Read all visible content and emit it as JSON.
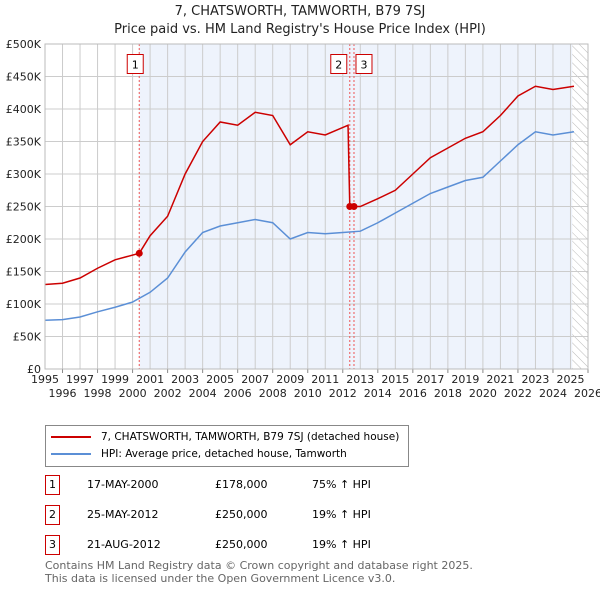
{
  "header": {
    "title": "7, CHATSWORTH, TAMWORTH, B79 7SJ",
    "subtitle": "Price paid vs. HM Land Registry's House Price Index (HPI)"
  },
  "chart_data": {
    "type": "line",
    "title": "7, CHATSWORTH, TAMWORTH, B79 7SJ",
    "subtitle": "Price paid vs. HM Land Registry's House Price Index (HPI)",
    "xlim": [
      1995,
      2026
    ],
    "ylim": [
      0,
      500000
    ],
    "xticks": [
      "1995",
      "1996",
      "1997",
      "1998",
      "1999",
      "2000",
      "2001",
      "2002",
      "2003",
      "2004",
      "2005",
      "2006",
      "2007",
      "2008",
      "2009",
      "2010",
      "2011",
      "2012",
      "2013",
      "2014",
      "2015",
      "2016",
      "2017",
      "2018",
      "2019",
      "2020",
      "2021",
      "2022",
      "2023",
      "2024",
      "2025",
      "2026"
    ],
    "yticks": [
      {
        "v": 0,
        "l": "£0"
      },
      {
        "v": 50000,
        "l": "£50K"
      },
      {
        "v": 100000,
        "l": "£100K"
      },
      {
        "v": 150000,
        "l": "£150K"
      },
      {
        "v": 200000,
        "l": "£200K"
      },
      {
        "v": 250000,
        "l": "£250K"
      },
      {
        "v": 300000,
        "l": "£300K"
      },
      {
        "v": 350000,
        "l": "£350K"
      },
      {
        "v": 400000,
        "l": "£400K"
      },
      {
        "v": 450000,
        "l": "£450K"
      },
      {
        "v": 500000,
        "l": "£500K"
      }
    ],
    "grid": true,
    "series": [
      {
        "name": "7, CHATSWORTH, TAMWORTH, B79 7SJ (detached house)",
        "color": "#cc0000",
        "x": [
          1995,
          1996,
          1997,
          1998,
          1999,
          2000.38,
          2001,
          2002,
          2003,
          2004,
          2005,
          2006,
          2007,
          2008,
          2009,
          2010,
          2011,
          2012.3,
          2012.4,
          2012.64,
          2013,
          2014,
          2015,
          2016,
          2017,
          2018,
          2019,
          2020,
          2021,
          2022,
          2023,
          2024,
          2025.2
        ],
        "y": [
          130000,
          132000,
          140000,
          155000,
          168000,
          178000,
          205000,
          235000,
          300000,
          350000,
          380000,
          375000,
          395000,
          390000,
          345000,
          365000,
          360000,
          375000,
          250000,
          250000,
          250000,
          262000,
          275000,
          300000,
          325000,
          340000,
          355000,
          365000,
          390000,
          420000,
          435000,
          430000,
          435000
        ]
      },
      {
        "name": "HPI: Average price, detached house, Tamworth",
        "color": "#5b8fd6",
        "x": [
          1995,
          1996,
          1997,
          1998,
          1999,
          2000,
          2001,
          2002,
          2003,
          2004,
          2005,
          2006,
          2007,
          2008,
          2009,
          2010,
          2011,
          2012,
          2013,
          2014,
          2015,
          2016,
          2017,
          2018,
          2019,
          2020,
          2021,
          2022,
          2023,
          2024,
          2025.2
        ],
        "y": [
          75000,
          76000,
          80000,
          88000,
          95000,
          103000,
          118000,
          140000,
          180000,
          210000,
          220000,
          225000,
          230000,
          225000,
          200000,
          210000,
          208000,
          210000,
          212000,
          225000,
          240000,
          255000,
          270000,
          280000,
          290000,
          295000,
          320000,
          345000,
          365000,
          360000,
          365000
        ]
      }
    ],
    "sales": [
      {
        "label": "1",
        "x": 2000.38,
        "y": 178000
      },
      {
        "label": "2",
        "x": 2012.4,
        "y": 250000
      },
      {
        "label": "3",
        "x": 2012.64,
        "y": 250000
      }
    ],
    "legend_position": "below"
  },
  "legend": [
    "7, CHATSWORTH, TAMWORTH, B79 7SJ (detached house)",
    "HPI: Average price, detached house, Tamworth"
  ],
  "table": [
    {
      "n": "1",
      "date": "17-MAY-2000",
      "price": "£178,000",
      "hpi": "75% ↑ HPI"
    },
    {
      "n": "2",
      "date": "25-MAY-2012",
      "price": "£250,000",
      "hpi": "19% ↑ HPI"
    },
    {
      "n": "3",
      "date": "21-AUG-2012",
      "price": "£250,000",
      "hpi": "19% ↑ HPI"
    }
  ],
  "footer": [
    "Contains HM Land Registry data © Crown copyright and database right 2025.",
    "This data is licensed under the Open Government Licence v3.0."
  ]
}
